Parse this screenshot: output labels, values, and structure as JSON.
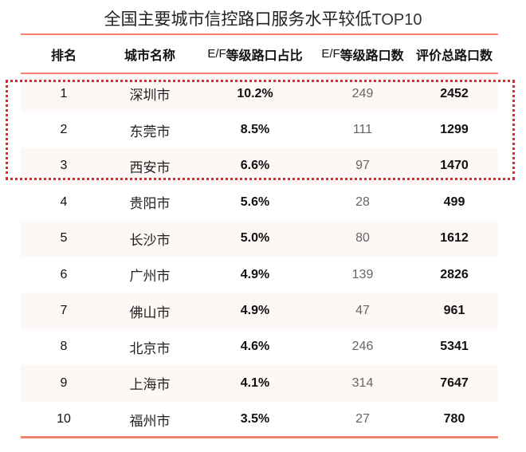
{
  "title": {
    "main": "全国主要城市信控路口服务水平较低",
    "suffix": "TOP10"
  },
  "colors": {
    "rule": "#f4806f",
    "stripe": "#fdf7f5",
    "highlight": "#ee2222"
  },
  "table": {
    "headers": {
      "rank": "排名",
      "city": "城市名称",
      "ratio_prefix": "E/F",
      "ratio": "等级路口占比",
      "count_prefix": "E/F",
      "count": "等级路口数",
      "total": "评价总路口数"
    },
    "rows": [
      {
        "rank": "1",
        "city": "深圳市",
        "ratio": "10.2%",
        "count": "249",
        "total": "2452"
      },
      {
        "rank": "2",
        "city": "东莞市",
        "ratio": "8.5%",
        "count": "111",
        "total": "1299"
      },
      {
        "rank": "3",
        "city": "西安市",
        "ratio": "6.6%",
        "count": "97",
        "total": "1470"
      },
      {
        "rank": "4",
        "city": "贵阳市",
        "ratio": "5.6%",
        "count": "28",
        "total": "499"
      },
      {
        "rank": "5",
        "city": "长沙市",
        "ratio": "5.0%",
        "count": "80",
        "total": "1612"
      },
      {
        "rank": "6",
        "city": "广州市",
        "ratio": "4.9%",
        "count": "139",
        "total": "2826"
      },
      {
        "rank": "7",
        "city": "佛山市",
        "ratio": "4.9%",
        "count": "47",
        "total": "961"
      },
      {
        "rank": "8",
        "city": "北京市",
        "ratio": "4.6%",
        "count": "246",
        "total": "5341"
      },
      {
        "rank": "9",
        "city": "上海市",
        "ratio": "4.1%",
        "count": "314",
        "total": "7647"
      },
      {
        "rank": "10",
        "city": "福州市",
        "ratio": "3.5%",
        "count": "27",
        "total": "780"
      }
    ],
    "highlighted_rows": [
      1,
      2,
      3
    ]
  }
}
